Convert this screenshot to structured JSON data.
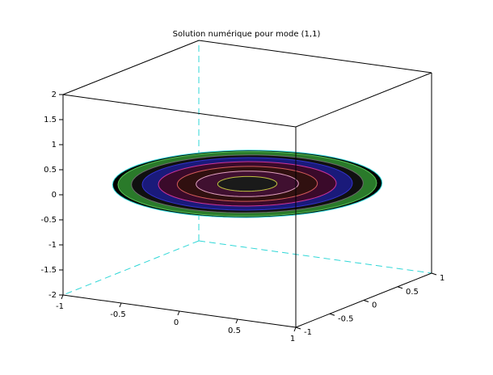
{
  "chart_data": {
    "type": "surface3d",
    "title": "Solution numérique pour mode (1,1)",
    "xlim": [
      -1,
      1
    ],
    "xticks": [
      -1,
      -0.5,
      0,
      0.5,
      1
    ],
    "ylim": [
      -1,
      1
    ],
    "yticks": [
      -1,
      -0.5,
      0,
      0.5,
      1
    ],
    "zlim": [
      -2,
      2
    ],
    "zticks": [
      -2,
      -1.5,
      -1,
      -0.5,
      0,
      0.5,
      1,
      1.5,
      2
    ]
  }
}
